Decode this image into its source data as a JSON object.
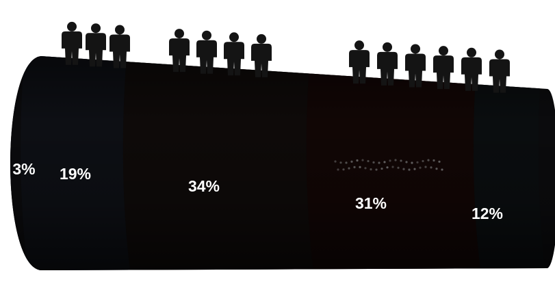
{
  "chart_data": {
    "type": "bar",
    "orientation": "horizontal-stacked-cylinder",
    "title": "",
    "xlabel": "",
    "ylabel": "",
    "categories": [
      "3%",
      "19%",
      "34%",
      "31%",
      "12%"
    ],
    "values": [
      3,
      19,
      34,
      31,
      12
    ],
    "labels": [
      "3%",
      "19%",
      "34%",
      "31%",
      "12%"
    ],
    "people_icon_counts": [
      0,
      3,
      4,
      0,
      6
    ],
    "icon": "person-icon",
    "colors": {
      "background": "#ffffff",
      "cylinder_dark": "#0b0b0d",
      "segment_1": "#0d0f14",
      "segment_2": "#0e0a09",
      "segment_3": "#110605",
      "segment_4": "#0a0d0f",
      "label": "#ffffff",
      "icon": "#141414"
    },
    "grid": false,
    "legend": "none"
  }
}
